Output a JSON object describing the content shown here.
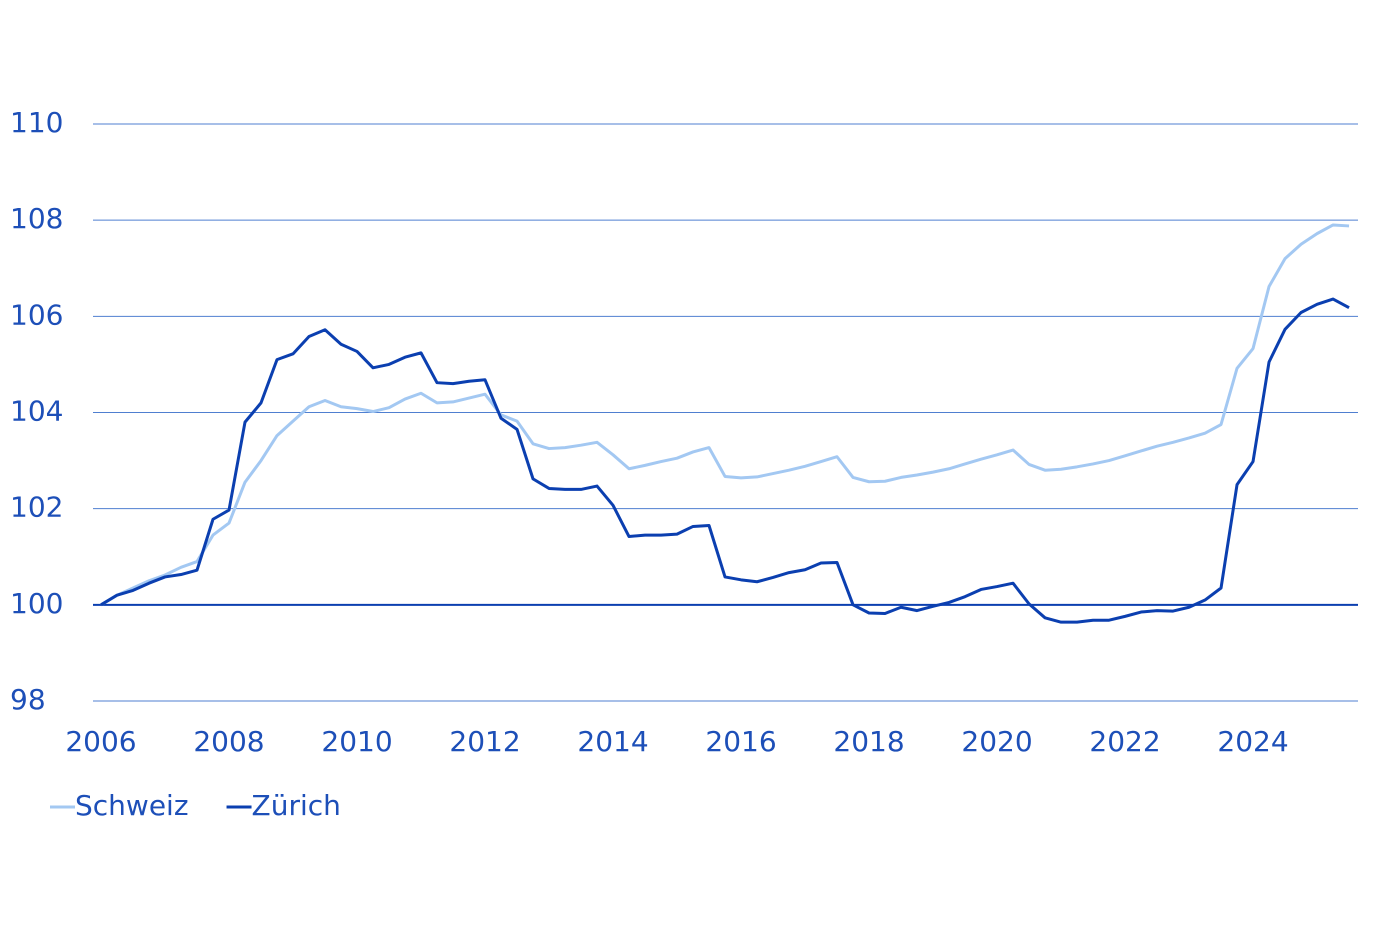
{
  "chart_data": {
    "type": "line",
    "xlim": [
      2006,
      2025.64
    ],
    "xticks": [
      2006,
      2008,
      2010,
      2012,
      2014,
      2016,
      2018,
      2020,
      2022,
      2024
    ],
    "ylim": [
      98,
      110
    ],
    "yticks": [
      98,
      100,
      102,
      104,
      106,
      108,
      110
    ],
    "grid": true,
    "baseline": 100,
    "legend": "bottom-left",
    "x": [
      2006,
      2006.25,
      2006.5,
      2006.75,
      2007,
      2007.25,
      2007.5,
      2007.75,
      2008,
      2008.25,
      2008.5,
      2008.75,
      2009,
      2009.25,
      2009.5,
      2009.75,
      2010,
      2010.25,
      2010.5,
      2010.75,
      2011,
      2011.25,
      2011.5,
      2011.75,
      2012,
      2012.25,
      2012.5,
      2012.75,
      2013,
      2013.25,
      2013.5,
      2013.75,
      2014,
      2014.25,
      2014.5,
      2014.75,
      2015,
      2015.25,
      2015.5,
      2015.75,
      2016,
      2016.25,
      2016.5,
      2016.75,
      2017,
      2017.25,
      2017.5,
      2017.75,
      2018,
      2018.25,
      2018.5,
      2018.75,
      2019,
      2019.25,
      2019.5,
      2019.75,
      2020,
      2020.25,
      2020.5,
      2020.75,
      2021,
      2021.25,
      2021.5,
      2021.75,
      2022,
      2022.25,
      2022.5,
      2022.75,
      2023,
      2023.25,
      2023.5,
      2023.75,
      2024,
      2024.25,
      2024.5,
      2024.75,
      2025,
      2025.25,
      2025.5
    ],
    "series": [
      {
        "name": "Schweiz",
        "color": "#a3c8f2",
        "values": [
          100,
          100.2,
          100.35,
          100.5,
          100.62,
          100.78,
          100.9,
          101.45,
          101.7,
          102.55,
          103.0,
          103.52,
          103.82,
          104.12,
          104.25,
          104.12,
          104.08,
          104.02,
          104.1,
          104.28,
          104.4,
          104.2,
          104.22,
          104.3,
          104.38,
          103.95,
          103.82,
          103.35,
          103.25,
          103.27,
          103.32,
          103.38,
          103.12,
          102.83,
          102.9,
          102.98,
          103.05,
          103.18,
          103.27,
          102.67,
          102.64,
          102.66,
          102.73,
          102.8,
          102.88,
          102.98,
          103.08,
          102.65,
          102.56,
          102.57,
          102.65,
          102.7,
          102.76,
          102.83,
          102.93,
          103.03,
          103.12,
          103.22,
          102.92,
          102.8,
          102.82,
          102.87,
          102.93,
          103.0,
          103.1,
          103.2,
          103.3,
          103.38,
          103.47,
          103.57,
          103.75,
          104.92,
          105.33,
          106.62,
          107.2,
          107.5,
          107.72,
          107.9,
          107.88
        ]
      },
      {
        "name": "Zürich",
        "color": "#0b3fb0",
        "values": [
          100,
          100.2,
          100.3,
          100.45,
          100.58,
          100.63,
          100.72,
          101.78,
          101.97,
          103.8,
          104.2,
          105.1,
          105.22,
          105.58,
          105.72,
          105.42,
          105.27,
          104.93,
          105.0,
          105.15,
          105.24,
          104.62,
          104.6,
          104.65,
          104.68,
          103.88,
          103.65,
          102.62,
          102.42,
          102.4,
          102.4,
          102.47,
          102.07,
          101.42,
          101.45,
          101.45,
          101.47,
          101.63,
          101.65,
          100.58,
          100.52,
          100.48,
          100.57,
          100.67,
          100.73,
          100.87,
          100.88,
          100.0,
          99.83,
          99.82,
          99.95,
          99.88,
          99.97,
          100.05,
          100.17,
          100.32,
          100.38,
          100.45,
          100.02,
          99.73,
          99.64,
          99.64,
          99.68,
          99.68,
          99.76,
          99.85,
          99.88,
          99.87,
          99.95,
          100.1,
          100.35,
          102.5,
          102.98,
          105.05,
          105.73,
          106.08,
          106.25,
          106.36,
          106.18
        ]
      }
    ]
  }
}
